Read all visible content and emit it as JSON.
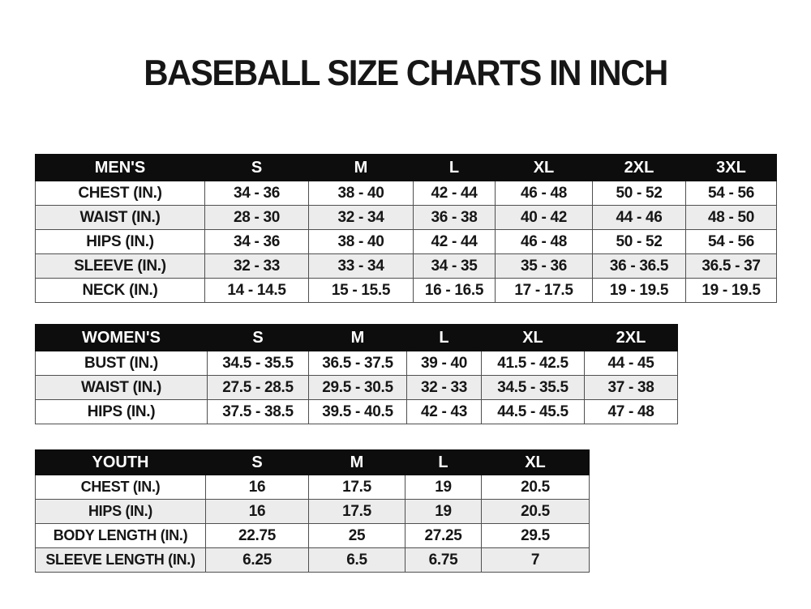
{
  "title": "BASEBALL SIZE CHARTS IN INCH",
  "colors": {
    "header_bg": "#0d0d0d",
    "header_text": "#ffffff",
    "row_bg": "#ffffff",
    "row_alt_bg": "#ececec",
    "border": "#4f4f4f",
    "text": "#161616",
    "page_bg": "#ffffff"
  },
  "tables": [
    {
      "name": "MEN'S",
      "columns": [
        "S",
        "M",
        "L",
        "XL",
        "2XL",
        "3XL"
      ],
      "rows": [
        {
          "label": "CHEST (IN.)",
          "values": [
            "34 - 36",
            "38 - 40",
            "42 - 44",
            "46 - 48",
            "50 - 52",
            "54 - 56"
          ]
        },
        {
          "label": "WAIST (IN.)",
          "values": [
            "28 - 30",
            "32 - 34",
            "36 - 38",
            "40 - 42",
            "44 - 46",
            "48 - 50"
          ]
        },
        {
          "label": "HIPS (IN.)",
          "values": [
            "34 - 36",
            "38 - 40",
            "42 - 44",
            "46 - 48",
            "50 - 52",
            "54 - 56"
          ]
        },
        {
          "label": "SLEEVE (IN.)",
          "values": [
            "32 - 33",
            "33 - 34",
            "34 - 35",
            "35 - 36",
            "36 - 36.5",
            "36.5 - 37"
          ]
        },
        {
          "label": "NECK (IN.)",
          "values": [
            "14 - 14.5",
            "15 - 15.5",
            "16 - 16.5",
            "17 - 17.5",
            "19 - 19.5",
            "19 - 19.5"
          ]
        }
      ]
    },
    {
      "name": "WOMEN'S",
      "columns": [
        "S",
        "M",
        "L",
        "XL",
        "2XL"
      ],
      "rows": [
        {
          "label": "BUST (IN.)",
          "values": [
            "34.5 - 35.5",
            "36.5 - 37.5",
            "39 - 40",
            "41.5 - 42.5",
            "44 - 45"
          ]
        },
        {
          "label": "WAIST (IN.)",
          "values": [
            "27.5 - 28.5",
            "29.5 - 30.5",
            "32 - 33",
            "34.5 - 35.5",
            "37 - 38"
          ]
        },
        {
          "label": "HIPS (IN.)",
          "values": [
            "37.5 - 38.5",
            "39.5 - 40.5",
            "42 - 43",
            "44.5 - 45.5",
            "47 - 48"
          ]
        }
      ]
    },
    {
      "name": "YOUTH",
      "columns": [
        "S",
        "M",
        "L",
        "XL"
      ],
      "rows": [
        {
          "label": "CHEST (IN.)",
          "values": [
            "16",
            "17.5",
            "19",
            "20.5"
          ]
        },
        {
          "label": "HIPS (IN.)",
          "values": [
            "16",
            "17.5",
            "19",
            "20.5"
          ]
        },
        {
          "label": "BODY LENGTH (IN.)",
          "values": [
            "22.75",
            "25",
            "27.25",
            "29.5"
          ]
        },
        {
          "label": "SLEEVE LENGTH (IN.)",
          "values": [
            "6.25",
            "6.5",
            "6.75",
            "7"
          ]
        }
      ]
    }
  ]
}
